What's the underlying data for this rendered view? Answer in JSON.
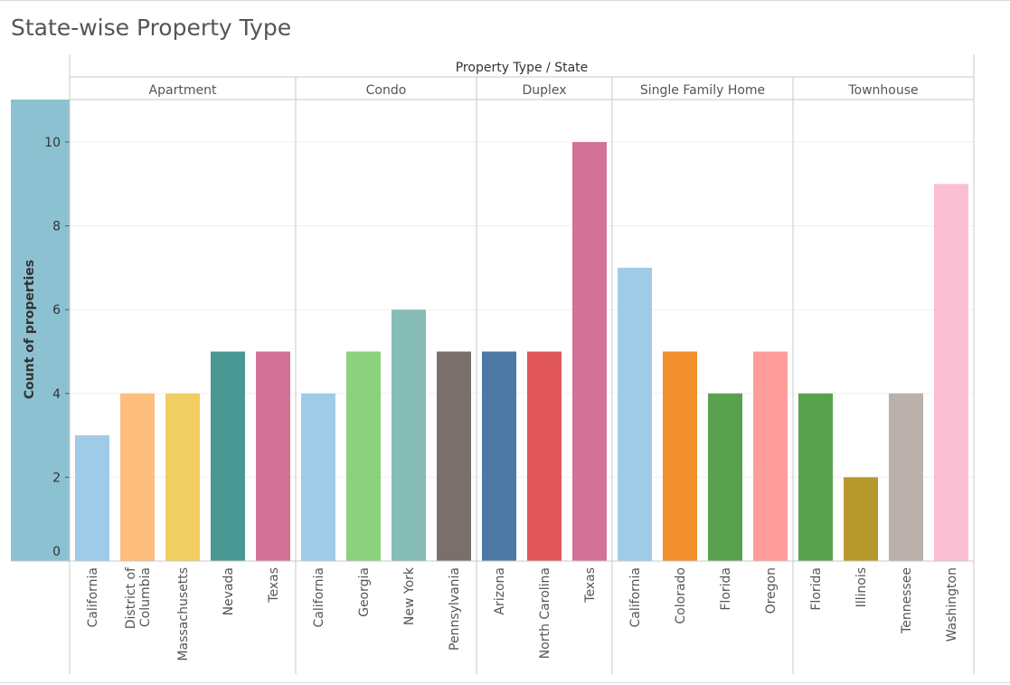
{
  "page": {
    "title": "State-wise Property Type"
  },
  "chart_data": {
    "type": "bar",
    "header_title": "Property Type  /  State",
    "ylabel": "Count of properties",
    "ylim": [
      0,
      11
    ],
    "yticks": [
      0,
      2,
      4,
      6,
      8,
      10
    ],
    "grid": true,
    "groups": [
      {
        "name": "Apartment",
        "bars": [
          {
            "state": "California",
            "value": 3,
            "color": "#a0cbe8"
          },
          {
            "state": "District of Columbia",
            "label_lines": [
              "District of",
              "Columbia"
            ],
            "value": 4,
            "color": "#ffbe7d"
          },
          {
            "state": "Massachusetts",
            "value": 4,
            "color": "#f1ce63"
          },
          {
            "state": "Nevada",
            "value": 5,
            "color": "#499894"
          },
          {
            "state": "Texas",
            "value": 5,
            "color": "#d37295"
          }
        ]
      },
      {
        "name": "Condo",
        "bars": [
          {
            "state": "California",
            "value": 4,
            "color": "#a0cbe8"
          },
          {
            "state": "Georgia",
            "value": 5,
            "color": "#8cd17d"
          },
          {
            "state": "New York",
            "value": 6,
            "color": "#86bcb6"
          },
          {
            "state": "Pennsylvania",
            "value": 5,
            "color": "#79706e"
          }
        ]
      },
      {
        "name": "Duplex",
        "bars": [
          {
            "state": "Arizona",
            "value": 5,
            "color": "#4e79a7"
          },
          {
            "state": "North Carolina",
            "value": 5,
            "color": "#e15759"
          },
          {
            "state": "Texas",
            "value": 10,
            "color": "#d37295"
          }
        ]
      },
      {
        "name": "Single Family Home",
        "bars": [
          {
            "state": "California",
            "value": 7,
            "color": "#a0cbe8"
          },
          {
            "state": "Colorado",
            "value": 5,
            "color": "#f28e2b"
          },
          {
            "state": "Florida",
            "value": 4,
            "color": "#59a14f"
          },
          {
            "state": "Oregon",
            "value": 5,
            "color": "#ff9d9a"
          }
        ]
      },
      {
        "name": "Townhouse",
        "bars": [
          {
            "state": "Florida",
            "value": 4,
            "color": "#59a14f"
          },
          {
            "state": "Illinois",
            "value": 2,
            "color": "#b6992d"
          },
          {
            "state": "Tennessee",
            "value": 4,
            "color": "#bab0ac"
          },
          {
            "state": "Washington",
            "value": 9,
            "color": "#fabfd2"
          }
        ]
      }
    ],
    "axis_panel_color": "#8cc1d2"
  }
}
